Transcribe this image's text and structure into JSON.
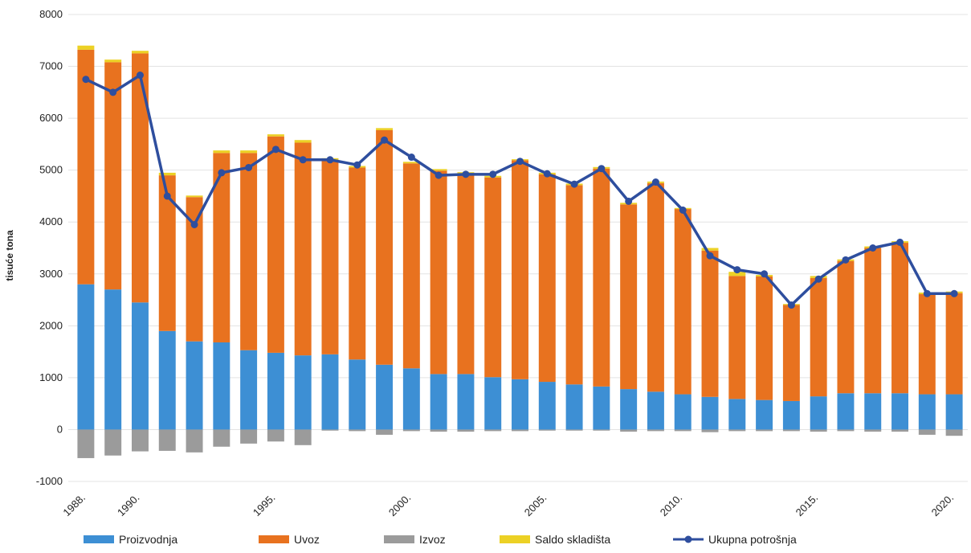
{
  "chart_data": {
    "type": "bar",
    "ylabel": "tisuće tona",
    "ylim": [
      -1000,
      8000
    ],
    "yticks": [
      -1000,
      0,
      1000,
      2000,
      3000,
      4000,
      5000,
      6000,
      7000,
      8000
    ],
    "grid": true,
    "legend_position": "bottom",
    "years": [
      1988,
      1989,
      1990,
      1991,
      1992,
      1993,
      1994,
      1995,
      1996,
      1997,
      1998,
      1999,
      2000,
      2001,
      2002,
      2003,
      2004,
      2005,
      2006,
      2007,
      2008,
      2009,
      2010,
      2011,
      2012,
      2013,
      2014,
      2015,
      2016,
      2017,
      2018,
      2019,
      2020
    ],
    "xtick_labels": [
      "1988.",
      "1990.",
      "1995.",
      "2000.",
      "2005.",
      "2010.",
      "2015.",
      "2020."
    ],
    "xtick_years": [
      1988,
      1990,
      1995,
      2000,
      2005,
      2010,
      2015,
      2020
    ],
    "series": [
      {
        "name": "Proizvodnja",
        "color": "#3d8fd4",
        "kind": "stack",
        "values": [
          2800,
          2700,
          2450,
          1900,
          1700,
          1680,
          1530,
          1480,
          1430,
          1450,
          1350,
          1250,
          1180,
          1070,
          1070,
          1010,
          970,
          920,
          870,
          830,
          780,
          730,
          680,
          630,
          590,
          570,
          550,
          640,
          700,
          700,
          700,
          680,
          680
        ]
      },
      {
        "name": "Uvoz",
        "color": "#e8721f",
        "kind": "stack",
        "values": [
          4520,
          4380,
          4800,
          3000,
          2780,
          3650,
          3800,
          4170,
          4100,
          3750,
          3700,
          4520,
          3950,
          3920,
          3860,
          3850,
          4220,
          4000,
          3840,
          4200,
          3560,
          4020,
          3570,
          2820,
          2370,
          2380,
          1850,
          2280,
          2550,
          2800,
          2900,
          1930,
          1950
        ]
      },
      {
        "name": "Izvoz",
        "color": "#9b9b9b",
        "kind": "stack",
        "values": [
          -550,
          -500,
          -420,
          -410,
          -440,
          -330,
          -270,
          -230,
          -300,
          -20,
          -30,
          -100,
          -30,
          -40,
          -40,
          -30,
          -30,
          -20,
          -20,
          -20,
          -40,
          -30,
          -30,
          -50,
          -30,
          -30,
          -30,
          -40,
          -30,
          -40,
          -40,
          -100,
          -120
        ]
      },
      {
        "name": "Saldo skladišta",
        "color": "#ecd125",
        "kind": "stack",
        "values": [
          80,
          50,
          50,
          50,
          30,
          50,
          50,
          40,
          50,
          30,
          30,
          40,
          30,
          30,
          30,
          30,
          20,
          30,
          30,
          30,
          30,
          30,
          20,
          50,
          80,
          30,
          20,
          40,
          30,
          30,
          30,
          30,
          30
        ]
      },
      {
        "name": "Ukupna potrošnja",
        "color": "#2e4e9e",
        "kind": "line",
        "values": [
          6750,
          6500,
          6830,
          4500,
          3950,
          4950,
          5050,
          5400,
          5200,
          5200,
          5100,
          5580,
          5250,
          4900,
          4920,
          4920,
          5170,
          4930,
          4730,
          5030,
          4400,
          4770,
          4230,
          3350,
          3080,
          3000,
          2400,
          2900,
          3270,
          3500,
          3610,
          2620,
          2620
        ]
      }
    ]
  }
}
